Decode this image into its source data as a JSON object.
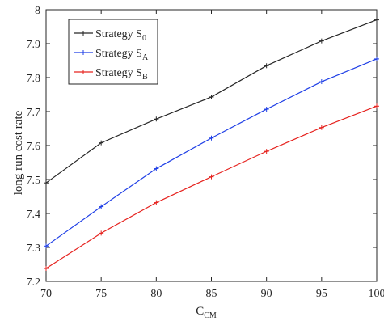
{
  "chart_data": {
    "type": "line",
    "xlabel": "C",
    "xlabel_sub": "CM",
    "ylabel": "long run cost rate",
    "x": [
      70,
      75,
      80,
      85,
      90,
      95,
      100
    ],
    "xlim": [
      70,
      100
    ],
    "ylim": [
      7.2,
      8.0
    ],
    "xticks": [
      70,
      75,
      80,
      85,
      90,
      95,
      100
    ],
    "yticks": [
      7.2,
      7.3,
      7.4,
      7.5,
      7.6,
      7.7,
      7.8,
      7.9,
      8
    ],
    "grid": false,
    "legend_position": "top-left",
    "series": [
      {
        "name": "Strategy S",
        "subscript": "0",
        "color": "#262626",
        "values": [
          7.49,
          7.608,
          7.678,
          7.743,
          7.835,
          7.908,
          7.97
        ]
      },
      {
        "name": "Strategy S",
        "subscript": "A",
        "color": "#1f3fe6",
        "values": [
          7.304,
          7.42,
          7.532,
          7.622,
          7.707,
          7.788,
          7.855
        ]
      },
      {
        "name": "Strategy S",
        "subscript": "B",
        "color": "#e6231f",
        "values": [
          7.238,
          7.342,
          7.432,
          7.508,
          7.583,
          7.653,
          7.716
        ]
      }
    ]
  }
}
